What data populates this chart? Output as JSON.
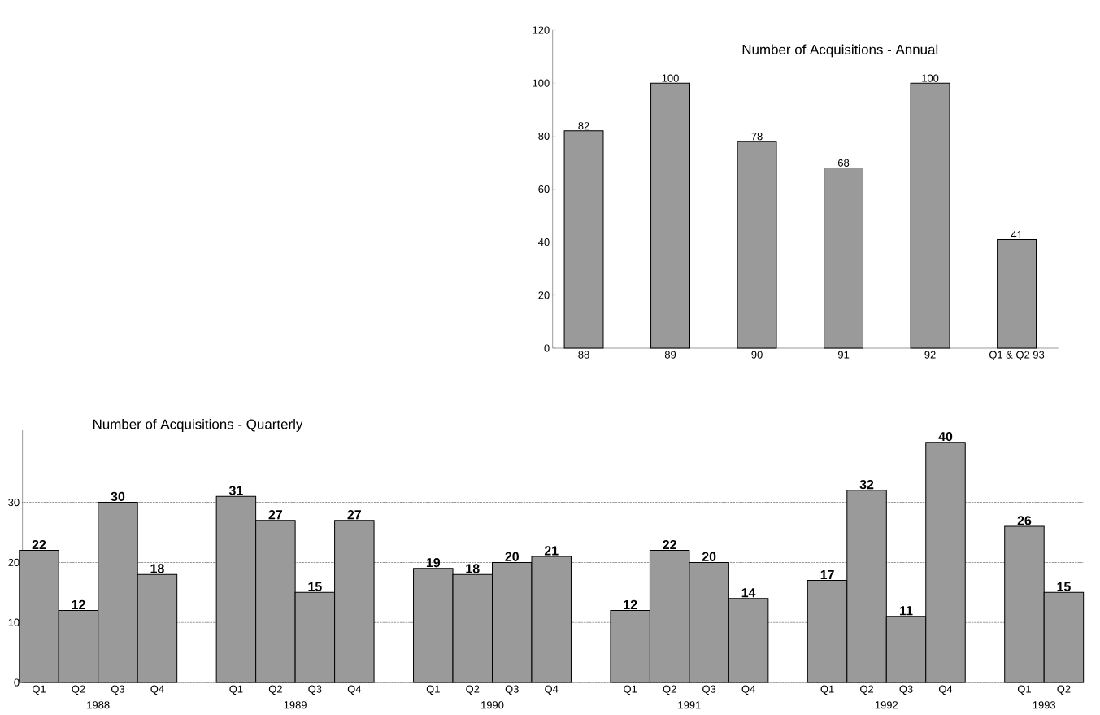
{
  "chart_data": [
    {
      "type": "bar",
      "title": "Number of Acquisitions - Annual",
      "categories": [
        "88",
        "89",
        "90",
        "91",
        "92",
        "Q1 & Q2 93"
      ],
      "values": [
        82,
        100,
        78,
        68,
        100,
        41
      ],
      "color": "#9a9a9a",
      "ylim": [
        0,
        120
      ],
      "yticks": [
        0,
        20,
        40,
        60,
        80,
        100,
        120
      ],
      "data_labels": true
    },
    {
      "type": "bar",
      "title": "Number of Acquisitions - Quarterly",
      "categories": [
        "Q1",
        "Q2",
        "Q3",
        "Q4",
        null,
        "Q1",
        "Q2",
        "Q3",
        "Q4",
        null,
        "Q1",
        "Q2",
        "Q3",
        "Q4",
        null,
        "Q1",
        "Q2",
        "Q3",
        "Q4",
        null,
        "Q1",
        "Q2",
        "Q3",
        "Q4",
        null,
        "Q1",
        "Q2"
      ],
      "values": [
        22,
        12,
        30,
        18,
        null,
        31,
        27,
        15,
        27,
        null,
        19,
        18,
        20,
        21,
        null,
        12,
        22,
        20,
        14,
        null,
        17,
        32,
        11,
        40,
        null,
        26,
        15
      ],
      "color": "#9a9a9a",
      "ylim": [
        0,
        42
      ],
      "yticks": [
        0,
        10,
        20,
        30
      ],
      "grid": "y",
      "data_labels": true,
      "annotations": [
        "1988",
        "1989",
        "1990",
        "1991",
        "1992",
        "1993"
      ]
    }
  ]
}
